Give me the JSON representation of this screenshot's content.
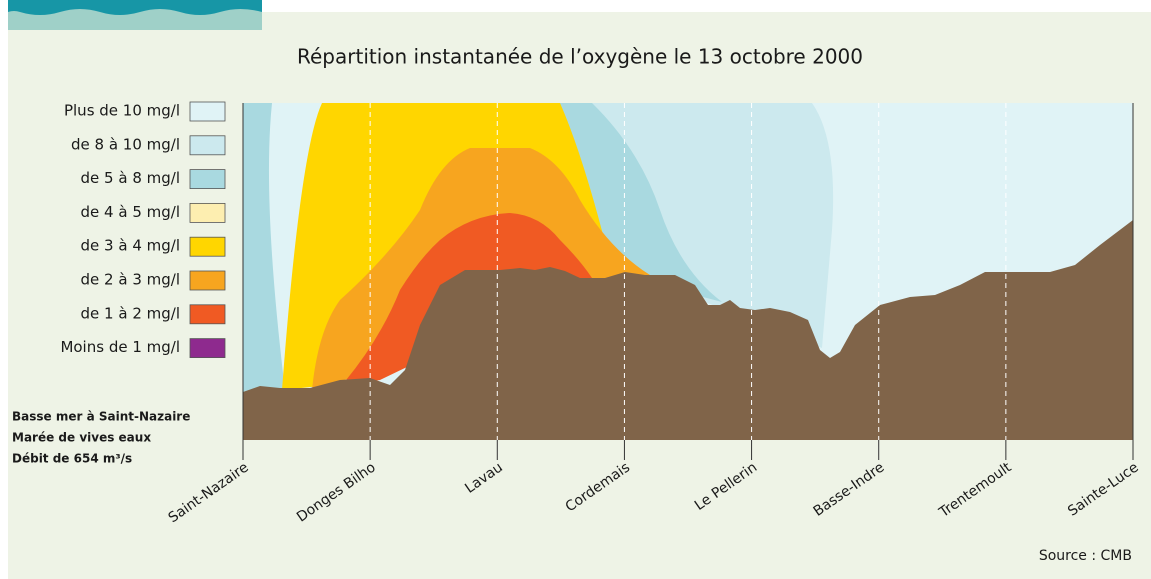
{
  "title": "Répartition instantanée de l’oxygène le 13 octobre 2000",
  "legend": [
    {
      "label": "Plus de 10 mg/l",
      "color": "#e0f3f6"
    },
    {
      "label": "de 8 à 10 mg/l",
      "color": "#cce9ee"
    },
    {
      "label": "de 5 à 8 mg/l",
      "color": "#a9d9e0"
    },
    {
      "label": "de 4 à 5 mg/l",
      "color": "#fdeeb0"
    },
    {
      "label": "de 3 à 4 mg/l",
      "color": "#ffd600"
    },
    {
      "label": "de 2 à 3 mg/l",
      "color": "#f7a51f"
    },
    {
      "label": "de 1 à 2 mg/l",
      "color": "#f05a23"
    },
    {
      "label": "Moins de 1 mg/l",
      "color": "#8e2a8e"
    }
  ],
  "notes": [
    "Basse mer à Saint-Nazaire",
    "Marée de vives eaux",
    "Débit de 654 m³/s"
  ],
  "stations": [
    "Saint-Nazaire",
    "Donges Bilho",
    "Lavau",
    "Cordemais",
    "Le Pellerin",
    "Basse-Indre",
    "Trentemoult",
    "Sainte-Luce"
  ],
  "source": "Source : CMB"
}
